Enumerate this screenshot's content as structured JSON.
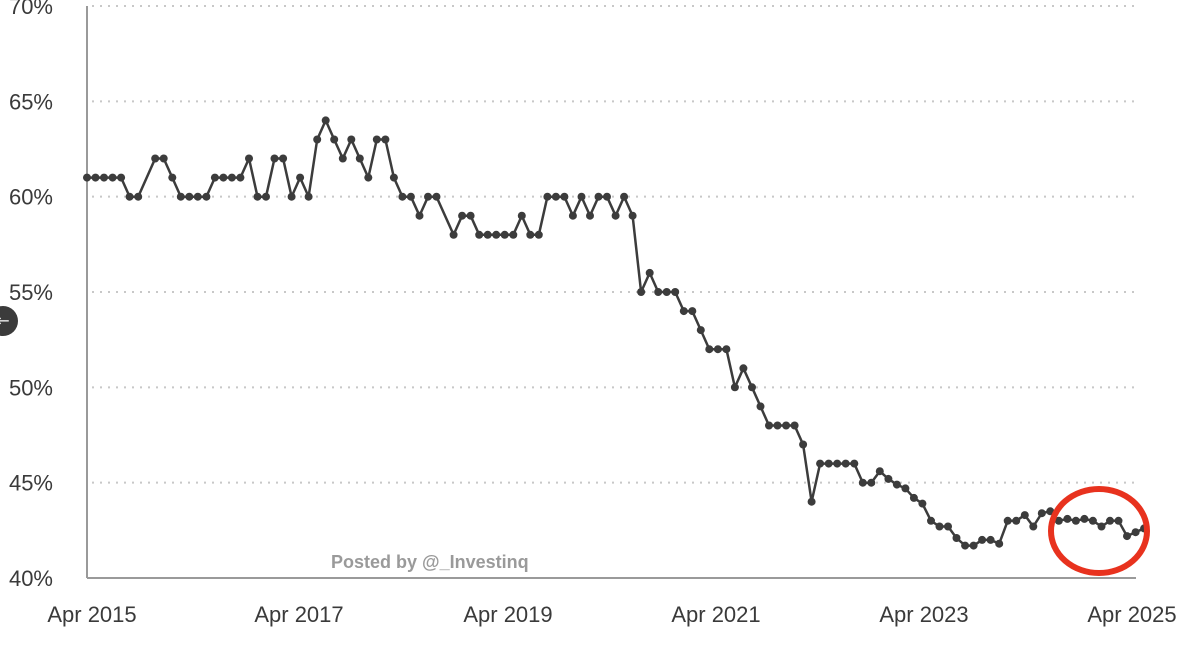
{
  "nav": {
    "back_icon": "arrow-left-icon",
    "back_glyph": "←"
  },
  "watermark": "Posted by @_Investinq",
  "colors": {
    "line": "#3c3c3c",
    "grid": "#c8c8c8",
    "axis": "#9a9a9a",
    "highlight": "#e8321e"
  },
  "chart_data": {
    "type": "line",
    "title": "",
    "xlabel": "",
    "ylabel": "",
    "x_ticks": [
      "Apr 2015",
      "Apr 2017",
      "Apr 2019",
      "Apr 2021",
      "Apr 2023",
      "Apr 2025"
    ],
    "y_ticks": [
      "40%",
      "45%",
      "50%",
      "55%",
      "60%",
      "65%",
      "70%"
    ],
    "ylim": [
      40,
      70
    ],
    "xlim": [
      "2015-04",
      "2025-04"
    ],
    "grid": {
      "horizontal": true,
      "style": "dotted"
    },
    "legend": "none",
    "highlight": {
      "shape": "circle",
      "around_period": [
        "2024-06",
        "2025-01"
      ]
    },
    "series": [
      {
        "points": [
          [
            "2015-04",
            61.0
          ],
          [
            "2015-05",
            61.0
          ],
          [
            "2015-06",
            61.0
          ],
          [
            "2015-07",
            61.0
          ],
          [
            "2015-08",
            61.0
          ],
          [
            "2015-09",
            60.0
          ],
          [
            "2015-10",
            60.0
          ],
          [
            "2015-12",
            62.0
          ],
          [
            "2016-01",
            62.0
          ],
          [
            "2016-02",
            61.0
          ],
          [
            "2016-03",
            60.0
          ],
          [
            "2016-04",
            60.0
          ],
          [
            "2016-05",
            60.0
          ],
          [
            "2016-06",
            60.0
          ],
          [
            "2016-07",
            61.0
          ],
          [
            "2016-08",
            61.0
          ],
          [
            "2016-09",
            61.0
          ],
          [
            "2016-10",
            61.0
          ],
          [
            "2016-11",
            62.0
          ],
          [
            "2016-12",
            60.0
          ],
          [
            "2017-01",
            60.0
          ],
          [
            "2017-02",
            62.0
          ],
          [
            "2017-03",
            62.0
          ],
          [
            "2017-04",
            60.0
          ],
          [
            "2017-05",
            61.0
          ],
          [
            "2017-06",
            60.0
          ],
          [
            "2017-07",
            63.0
          ],
          [
            "2017-08",
            64.0
          ],
          [
            "2017-09",
            63.0
          ],
          [
            "2017-10",
            62.0
          ],
          [
            "2017-11",
            63.0
          ],
          [
            "2017-12",
            62.0
          ],
          [
            "2018-01",
            61.0
          ],
          [
            "2018-02",
            63.0
          ],
          [
            "2018-03",
            63.0
          ],
          [
            "2018-04",
            61.0
          ],
          [
            "2018-05",
            60.0
          ],
          [
            "2018-06",
            60.0
          ],
          [
            "2018-07",
            59.0
          ],
          [
            "2018-08",
            60.0
          ],
          [
            "2018-09",
            60.0
          ],
          [
            "2018-11",
            58.0
          ],
          [
            "2018-12",
            59.0
          ],
          [
            "2019-01",
            59.0
          ],
          [
            "2019-02",
            58.0
          ],
          [
            "2019-03",
            58.0
          ],
          [
            "2019-04",
            58.0
          ],
          [
            "2019-05",
            58.0
          ],
          [
            "2019-06",
            58.0
          ],
          [
            "2019-07",
            59.0
          ],
          [
            "2019-08",
            58.0
          ],
          [
            "2019-09",
            58.0
          ],
          [
            "2019-10",
            60.0
          ],
          [
            "2019-11",
            60.0
          ],
          [
            "2019-12",
            60.0
          ],
          [
            "2020-01",
            59.0
          ],
          [
            "2020-02",
            60.0
          ],
          [
            "2020-03",
            59.0
          ],
          [
            "2020-04",
            60.0
          ],
          [
            "2020-05",
            60.0
          ],
          [
            "2020-06",
            59.0
          ],
          [
            "2020-07",
            60.0
          ],
          [
            "2020-08",
            59.0
          ],
          [
            "2020-09",
            55.0
          ],
          [
            "2020-10",
            56.0
          ],
          [
            "2020-11",
            55.0
          ],
          [
            "2020-12",
            55.0
          ],
          [
            "2021-01",
            55.0
          ],
          [
            "2021-02",
            54.0
          ],
          [
            "2021-03",
            54.0
          ],
          [
            "2021-04",
            53.0
          ],
          [
            "2021-05",
            52.0
          ],
          [
            "2021-06",
            52.0
          ],
          [
            "2021-07",
            52.0
          ],
          [
            "2021-08",
            50.0
          ],
          [
            "2021-09",
            51.0
          ],
          [
            "2021-10",
            50.0
          ],
          [
            "2021-11",
            49.0
          ],
          [
            "2021-12",
            48.0
          ],
          [
            "2022-01",
            48.0
          ],
          [
            "2022-02",
            48.0
          ],
          [
            "2022-03",
            48.0
          ],
          [
            "2022-04",
            47.0
          ],
          [
            "2022-05",
            44.0
          ],
          [
            "2022-06",
            46.0
          ],
          [
            "2022-07",
            46.0
          ],
          [
            "2022-08",
            46.0
          ],
          [
            "2022-09",
            46.0
          ],
          [
            "2022-10",
            46.0
          ],
          [
            "2022-11",
            45.0
          ],
          [
            "2022-12",
            45.0
          ],
          [
            "2023-01",
            45.6
          ],
          [
            "2023-02",
            45.2
          ],
          [
            "2023-03",
            44.9
          ],
          [
            "2023-04",
            44.7
          ],
          [
            "2023-05",
            44.2
          ],
          [
            "2023-06",
            43.9
          ],
          [
            "2023-07",
            43.0
          ],
          [
            "2023-08",
            42.7
          ],
          [
            "2023-09",
            42.7
          ],
          [
            "2023-10",
            42.1
          ],
          [
            "2023-11",
            41.7
          ],
          [
            "2023-12",
            41.7
          ],
          [
            "2024-01",
            42.0
          ],
          [
            "2024-02",
            42.0
          ],
          [
            "2024-03",
            41.8
          ],
          [
            "2024-04",
            43.0
          ],
          [
            "2024-05",
            43.0
          ],
          [
            "2024-06",
            43.3
          ],
          [
            "2024-07",
            42.7
          ],
          [
            "2024-08",
            43.4
          ],
          [
            "2024-09",
            43.5
          ],
          [
            "2024-10",
            43.0
          ],
          [
            "2024-11",
            43.1
          ],
          [
            "2024-12",
            43.0
          ],
          [
            "2025-01",
            43.1
          ],
          [
            "2025-02",
            43.0
          ],
          [
            "2025-03",
            42.7
          ],
          [
            "2025-04",
            43.0
          ],
          [
            "2025-05",
            43.0
          ],
          [
            "2025-06",
            42.2
          ],
          [
            "2025-07",
            42.4
          ],
          [
            "2025-08",
            42.6
          ]
        ]
      }
    ]
  }
}
